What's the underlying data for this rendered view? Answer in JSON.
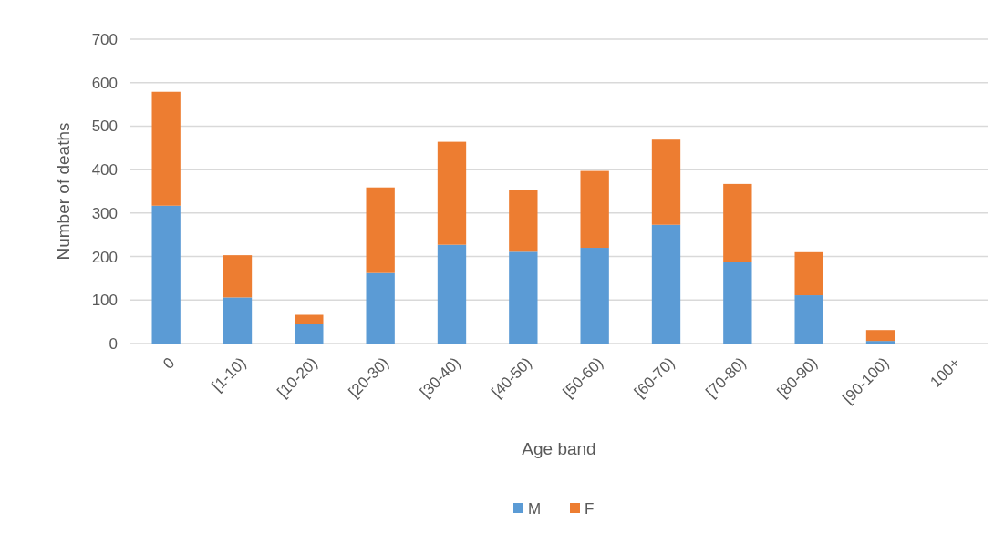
{
  "chart_data": {
    "type": "bar",
    "stacked": true,
    "xlabel": "Age band",
    "ylabel": "Number of deaths",
    "categories": [
      "0",
      "[1-10)",
      "[10-20)",
      "[20-30)",
      "[30-40)",
      "[40-50)",
      "[50-60)",
      "[60-70)",
      "[70-80)",
      "[80-90)",
      "[90-100)",
      "100+"
    ],
    "series": [
      {
        "name": "M",
        "color": "#5b9bd5",
        "values": [
          317,
          106,
          44,
          162,
          227,
          211,
          220,
          273,
          187,
          111,
          6,
          0
        ]
      },
      {
        "name": "F",
        "color": "#ed7d31",
        "values": [
          262,
          97,
          22,
          197,
          237,
          143,
          177,
          196,
          180,
          99,
          25,
          0
        ]
      }
    ],
    "ylim": [
      0,
      700
    ],
    "yticks": [
      0,
      100,
      200,
      300,
      400,
      500,
      600,
      700
    ],
    "grid": "y",
    "legend": "bottom"
  }
}
